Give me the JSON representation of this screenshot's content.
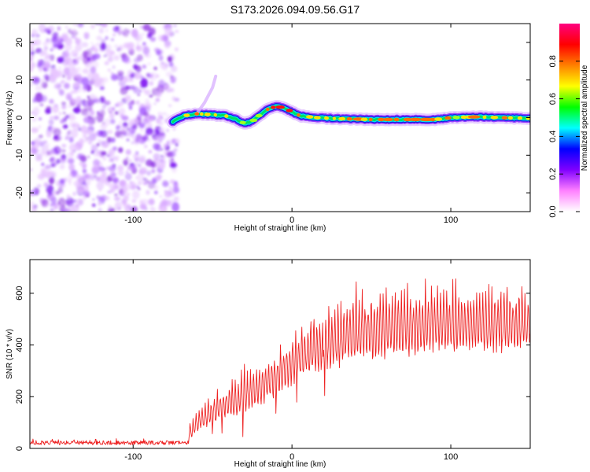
{
  "title": "S173.2026.094.09.56.G17",
  "chart_data": [
    {
      "type": "heatmap",
      "xlabel": "Height of straight line (km)",
      "ylabel": "Frequency (Hz)",
      "xlim": [
        -165,
        150
      ],
      "ylim": [
        -25,
        25
      ],
      "xticks": [
        -100,
        0,
        100
      ],
      "yticks": [
        -20,
        -10,
        0,
        10,
        20
      ],
      "colorbar": {
        "label": "Normalized spectral amplitude",
        "range": [
          0,
          1
        ],
        "ticks": [
          "0.0",
          "0.2",
          "0.4",
          "0.6",
          "0.8"
        ],
        "tick_values": [
          0,
          0.2,
          0.4,
          0.6,
          0.8
        ],
        "colors": [
          "#ffffff",
          "#ff80ff",
          "#8000ff",
          "#0000ff",
          "#00ffff",
          "#00ff00",
          "#ffff00",
          "#ff8000",
          "#ff0000",
          "#ff0080"
        ]
      },
      "noise_region_x": [
        -165,
        -75
      ],
      "ridge": [
        {
          "x": -75,
          "y": -1.0
        },
        {
          "x": -68,
          "y": 0.5
        },
        {
          "x": -60,
          "y": 1.0
        },
        {
          "x": -50,
          "y": 0.8
        },
        {
          "x": -42,
          "y": 0.5
        },
        {
          "x": -35,
          "y": -0.5
        },
        {
          "x": -30,
          "y": -1.5
        },
        {
          "x": -25,
          "y": -1.0
        },
        {
          "x": -20,
          "y": 0.8
        },
        {
          "x": -15,
          "y": 2.3
        },
        {
          "x": -10,
          "y": 3.0
        },
        {
          "x": -5,
          "y": 2.6
        },
        {
          "x": 0,
          "y": 1.5
        },
        {
          "x": 5,
          "y": 0.5
        },
        {
          "x": 15,
          "y": 0.0
        },
        {
          "x": 30,
          "y": -0.3
        },
        {
          "x": 50,
          "y": -0.5
        },
        {
          "x": 70,
          "y": -0.5
        },
        {
          "x": 90,
          "y": -0.5
        },
        {
          "x": 100,
          "y": 0.0
        },
        {
          "x": 115,
          "y": 0.2
        },
        {
          "x": 130,
          "y": 0.0
        },
        {
          "x": 150,
          "y": -0.2
        }
      ],
      "ridge_amplitude": [
        0.25,
        0.55,
        0.7,
        0.55,
        0.6,
        0.45,
        0.35,
        0.4,
        0.5,
        0.85,
        0.9,
        0.8,
        0.85,
        0.65,
        0.6,
        0.6,
        0.65,
        0.75,
        0.6,
        0.55,
        0.7,
        0.6,
        0.5
      ],
      "spur": [
        {
          "x": -60,
          "y": 1
        },
        {
          "x": -55,
          "y": 4
        },
        {
          "x": -50,
          "y": 8
        },
        {
          "x": -48,
          "y": 11
        }
      ]
    },
    {
      "type": "line",
      "xlabel": "Height of straight line (km)",
      "ylabel": "SNR (10 * v/v)",
      "xlim": [
        -165,
        150
      ],
      "ylim": [
        0,
        730
      ],
      "xticks": [
        -100,
        0,
        100
      ],
      "yticks": [
        0,
        200,
        400,
        600
      ],
      "color": "#ee2222",
      "baseline": {
        "x_range": [
          -165,
          -65
        ],
        "mean": 22,
        "jitter": 8
      },
      "trend": [
        {
          "x": -65,
          "y": 50
        },
        {
          "x": -60,
          "y": 95
        },
        {
          "x": -50,
          "y": 140
        },
        {
          "x": -40,
          "y": 170
        },
        {
          "x": -30,
          "y": 200
        },
        {
          "x": -20,
          "y": 230
        },
        {
          "x": -10,
          "y": 275
        },
        {
          "x": 0,
          "y": 330
        },
        {
          "x": 10,
          "y": 370
        },
        {
          "x": 20,
          "y": 400
        },
        {
          "x": 30,
          "y": 425
        },
        {
          "x": 40,
          "y": 450
        },
        {
          "x": 60,
          "y": 460
        },
        {
          "x": 80,
          "y": 470
        },
        {
          "x": 100,
          "y": 475
        },
        {
          "x": 120,
          "y": 480
        },
        {
          "x": 150,
          "y": 485
        }
      ],
      "oscillation_amplitude": [
        {
          "x": -65,
          "y": 40
        },
        {
          "x": -30,
          "y": 100
        },
        {
          "x": 0,
          "y": 120
        },
        {
          "x": 40,
          "y": 170
        },
        {
          "x": 90,
          "y": 160
        },
        {
          "x": 150,
          "y": 150
        }
      ]
    }
  ]
}
